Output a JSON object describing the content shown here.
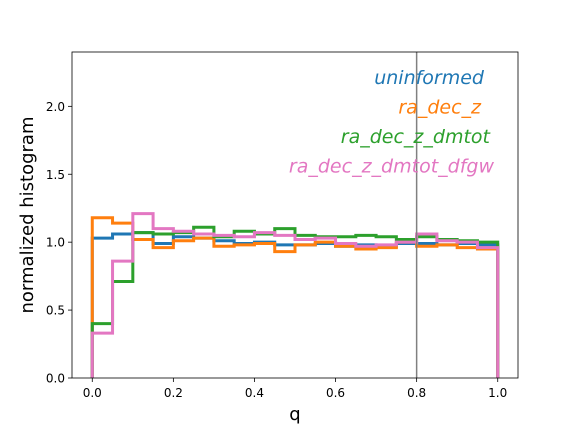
{
  "chart_data": {
    "type": "histogram",
    "xlabel": "q",
    "ylabel": "normalized histogram",
    "xlim": [
      -0.05,
      1.05
    ],
    "ylim": [
      0.0,
      2.4
    ],
    "xticks": [
      "0.0",
      "0.2",
      "0.4",
      "0.6",
      "0.8",
      "1.0"
    ],
    "yticks": [
      "0.0",
      "0.5",
      "1.0",
      "1.5",
      "2.0"
    ],
    "bin_edges": [
      0.0,
      0.05,
      0.1,
      0.15,
      0.2,
      0.25,
      0.3,
      0.35,
      0.4,
      0.45,
      0.5,
      0.55,
      0.6,
      0.65,
      0.7,
      0.75,
      0.8,
      0.85,
      0.9,
      0.95,
      1.0
    ],
    "vline": {
      "x": 0.8,
      "color": "#808080"
    },
    "legend_position": "top-right (inside axes)",
    "series": [
      {
        "name": "uninformed",
        "color": "#1f77b4",
        "values": [
          1.03,
          1.06,
          1.07,
          0.99,
          1.04,
          1.03,
          1.01,
          0.99,
          1.0,
          0.98,
          0.98,
          0.99,
          0.97,
          0.98,
          0.97,
          0.99,
          0.99,
          0.98,
          0.99,
          0.98
        ]
      },
      {
        "name": "ra_dec_z",
        "color": "#ff7f0e",
        "values": [
          1.18,
          1.14,
          1.02,
          0.96,
          1.01,
          1.03,
          0.97,
          0.98,
          0.99,
          0.93,
          0.98,
          1.0,
          0.97,
          0.95,
          0.96,
          1.0,
          0.97,
          0.98,
          0.96,
          0.95
        ]
      },
      {
        "name": "ra_dec_z_dmtot",
        "color": "#2ca02c",
        "values": [
          0.4,
          0.71,
          1.07,
          1.06,
          1.07,
          1.11,
          1.04,
          1.08,
          1.06,
          1.1,
          1.05,
          1.04,
          1.04,
          1.05,
          1.04,
          1.02,
          1.04,
          1.02,
          1.01,
          1.0
        ]
      },
      {
        "name": "ra_dec_z_dmtot_dfgw",
        "color": "#e377c2",
        "values": [
          0.33,
          0.86,
          1.21,
          1.1,
          1.08,
          1.06,
          1.05,
          1.04,
          1.07,
          1.05,
          1.02,
          1.03,
          0.99,
          0.97,
          0.98,
          1.0,
          1.06,
          1.01,
          1.0,
          0.96
        ]
      }
    ]
  }
}
